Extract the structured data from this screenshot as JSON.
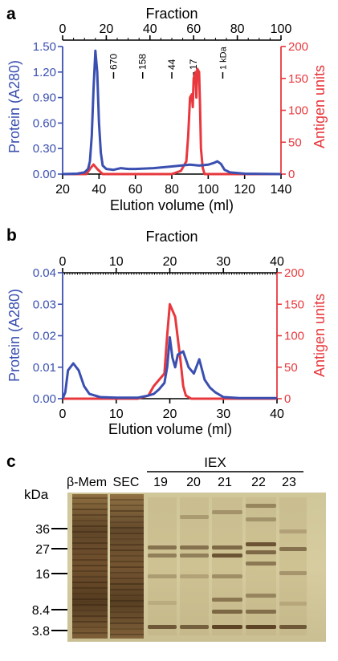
{
  "colors": {
    "protein": "#3a4fb0",
    "antigen": "#e8383d",
    "axis": "#000000"
  },
  "panels": {
    "a": {
      "letter": "a",
      "top_axis_title": "Fraction",
      "top_ticks": [
        "0",
        "20",
        "40",
        "60",
        "80",
        "100"
      ],
      "left_ticks": [
        "0.00",
        "0.30",
        "0.60",
        "0.90",
        "1.20",
        "1.50"
      ],
      "right_ticks": [
        "0",
        "50",
        "100",
        "150",
        "200"
      ],
      "bottom_ticks": [
        "20",
        "40",
        "60",
        "80",
        "100",
        "120",
        "140"
      ],
      "ylabel_left": "Protein (A280)",
      "ylabel_right": "Antigen units",
      "xlabel": "Elution volume (ml)",
      "markers": [
        "670",
        "158",
        "44",
        "17",
        "1 kDa"
      ]
    },
    "b": {
      "letter": "b",
      "top_axis_title": "Fraction",
      "top_ticks": [
        "0",
        "10",
        "20",
        "30",
        "40"
      ],
      "left_ticks": [
        "0.00",
        "0.01",
        "0.02",
        "0.03",
        "0.04"
      ],
      "right_ticks": [
        "0",
        "50",
        "100",
        "150",
        "200"
      ],
      "bottom_ticks": [
        "0",
        "10",
        "20",
        "30",
        "40"
      ],
      "ylabel_left": "Protein (A280)",
      "ylabel_right": "Antigen units",
      "xlabel": "Elution volume (ml)"
    },
    "c": {
      "letter": "c",
      "group_label": "IEX",
      "lane_labels": [
        "β-Mem",
        "SEC",
        "19",
        "20",
        "21",
        "22",
        "23"
      ],
      "kda_label": "kDa",
      "size_markers": [
        "36",
        "27",
        "16",
        "8.4",
        "3.8"
      ]
    }
  },
  "chart_data": [
    {
      "type": "line",
      "panel": "a",
      "xlabel": "Elution volume (ml)",
      "ylabel": "Protein (A280)",
      "y2label": "Antigen units",
      "xlim": [
        20,
        140
      ],
      "ylim": [
        0,
        1.5
      ],
      "y2lim": [
        0,
        200
      ],
      "top_axis": {
        "label": "Fraction",
        "range": [
          0,
          100
        ]
      },
      "mw_markers": [
        {
          "label": "670",
          "x": 48
        },
        {
          "label": "158",
          "x": 64
        },
        {
          "label": "44",
          "x": 80
        },
        {
          "label": "17",
          "x": 92
        },
        {
          "label": "1 kDa",
          "x": 108
        }
      ],
      "series": [
        {
          "axis": "left",
          "color": "#3a4fb0",
          "points": [
            [
              20,
              0
            ],
            [
              28,
              0.005
            ],
            [
              32,
              0.02
            ],
            [
              34,
              0.06
            ],
            [
              35,
              0.15
            ],
            [
              36,
              0.45
            ],
            [
              37,
              1.0
            ],
            [
              38,
              1.45
            ],
            [
              39,
              1.2
            ],
            [
              40,
              0.6
            ],
            [
              41,
              0.25
            ],
            [
              42,
              0.1
            ],
            [
              44,
              0.06
            ],
            [
              48,
              0.05
            ],
            [
              52,
              0.07
            ],
            [
              56,
              0.06
            ],
            [
              60,
              0.06
            ],
            [
              70,
              0.07
            ],
            [
              80,
              0.09
            ],
            [
              85,
              0.1
            ],
            [
              90,
              0.11
            ],
            [
              95,
              0.1
            ],
            [
              100,
              0.11
            ],
            [
              103,
              0.13
            ],
            [
              105,
              0.15
            ],
            [
              107,
              0.12
            ],
            [
              109,
              0.05
            ],
            [
              112,
              0.02
            ],
            [
              120,
              0.005
            ],
            [
              140,
              0
            ]
          ]
        },
        {
          "axis": "right",
          "color": "#e8383d",
          "points": [
            [
              20,
              0
            ],
            [
              33,
              0
            ],
            [
              35,
              8
            ],
            [
              37,
              15
            ],
            [
              39,
              8
            ],
            [
              42,
              0
            ],
            [
              80,
              0
            ],
            [
              85,
              5
            ],
            [
              88,
              20
            ],
            [
              89,
              60
            ],
            [
              90,
              120
            ],
            [
              91,
              125
            ],
            [
              91.5,
              105
            ],
            [
              92,
              150
            ],
            [
              93,
              160
            ],
            [
              93.5,
              120
            ],
            [
              94,
              165
            ],
            [
              95,
              160
            ],
            [
              95.5,
              110
            ],
            [
              96,
              40
            ],
            [
              97,
              10
            ],
            [
              98,
              0
            ],
            [
              140,
              0
            ]
          ]
        }
      ]
    },
    {
      "type": "line",
      "panel": "b",
      "xlabel": "Elution volume (ml)",
      "ylabel": "Protein (A280)",
      "y2label": "Antigen units",
      "xlim": [
        0,
        40
      ],
      "ylim": [
        0,
        0.04
      ],
      "y2lim": [
        0,
        200
      ],
      "top_axis": {
        "label": "Fraction",
        "range": [
          0,
          40
        ]
      },
      "series": [
        {
          "axis": "left",
          "color": "#3a4fb0",
          "points": [
            [
              0,
              0
            ],
            [
              0.5,
              0.002
            ],
            [
              1,
              0.009
            ],
            [
              2,
              0.0112
            ],
            [
              3,
              0.009
            ],
            [
              4,
              0.004
            ],
            [
              5,
              0.0015
            ],
            [
              7,
              0.0005
            ],
            [
              10,
              0.0003
            ],
            [
              14,
              0.0003
            ],
            [
              16,
              0.001
            ],
            [
              17,
              0.0015
            ],
            [
              18,
              0.003
            ],
            [
              19,
              0.005
            ],
            [
              19.5,
              0.01
            ],
            [
              20,
              0.0195
            ],
            [
              20.5,
              0.013
            ],
            [
              21,
              0.01
            ],
            [
              21.5,
              0.014
            ],
            [
              22.5,
              0.015
            ],
            [
              23.5,
              0.01
            ],
            [
              24.5,
              0.008
            ],
            [
              25.5,
              0.0125
            ],
            [
              26.5,
              0.006
            ],
            [
              27.5,
              0.0035
            ],
            [
              28.5,
              0.002
            ],
            [
              30,
              0.0005
            ],
            [
              33,
              0.0002
            ],
            [
              40,
              0.0002
            ]
          ]
        },
        {
          "axis": "right",
          "color": "#e8383d",
          "points": [
            [
              0,
              0
            ],
            [
              14,
              0
            ],
            [
              16,
              5
            ],
            [
              17,
              20
            ],
            [
              18,
              30
            ],
            [
              19,
              40
            ],
            [
              19.5,
              100
            ],
            [
              20,
              150
            ],
            [
              21,
              130
            ],
            [
              22,
              60
            ],
            [
              22.5,
              20
            ],
            [
              23,
              5
            ],
            [
              24,
              0
            ],
            [
              40,
              0
            ]
          ]
        }
      ]
    }
  ]
}
